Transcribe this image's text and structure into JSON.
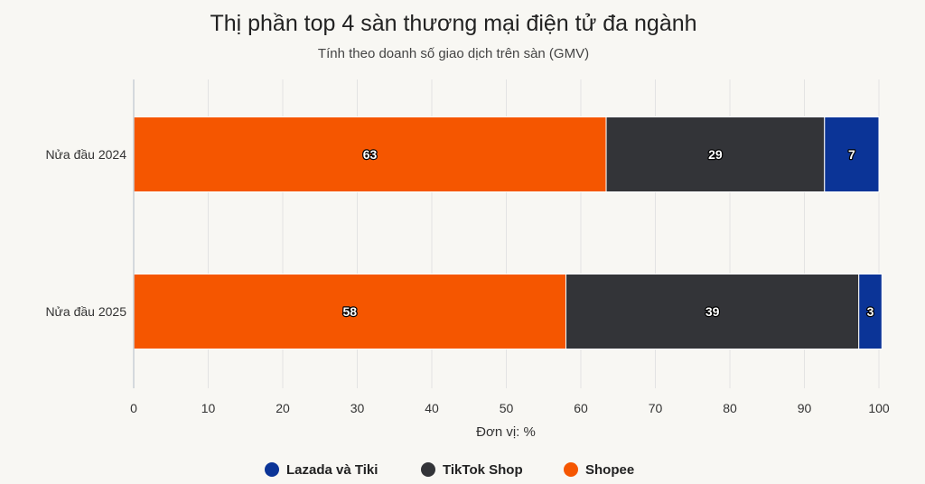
{
  "chart_data": {
    "type": "bar",
    "orientation": "horizontal",
    "stacked": true,
    "title": "Thị phần top 4 sàn thương mại điện tử đa ngành",
    "subtitle": "Tính theo doanh số giao dịch trên sàn (GMV)",
    "xlabel": "Đơn vị: %",
    "ylabel": "",
    "categories": [
      "Nửa đầu 2024",
      "Nửa đầu 2025"
    ],
    "xlim": [
      0,
      100
    ],
    "x_ticks": [
      0,
      10,
      20,
      30,
      40,
      50,
      60,
      70,
      80,
      90,
      100
    ],
    "grid": true,
    "legend_position": "bottom",
    "series": [
      {
        "name": "Shopee",
        "color": "#f55600",
        "values": [
          63.4,
          58
        ]
      },
      {
        "name": "TikTok Shop",
        "color": "#333438",
        "values": [
          29.3,
          39.3
        ]
      },
      {
        "name": "Lazada và Tiki",
        "color": "#0b3497",
        "values": [
          7.3,
          3.1
        ]
      }
    ],
    "data_labels": [
      [
        "63",
        "58"
      ],
      [
        "29",
        "39"
      ],
      [
        "7",
        "3"
      ]
    ],
    "legend_order": [
      "Lazada và Tiki",
      "TikTok Shop",
      "Shopee"
    ]
  }
}
